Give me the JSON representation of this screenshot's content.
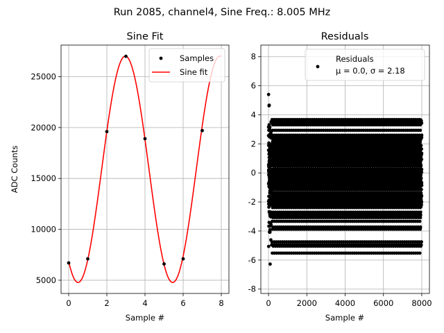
{
  "figure": {
    "title": "Run 2085, channel4, Sine Freq.: 8.005 MHz"
  },
  "chart_data": [
    {
      "type": "scatter",
      "title": "Sine Fit",
      "xlabel": "Sample #",
      "ylabel": "ADC Counts",
      "xlim": [
        -0.4,
        8.4
      ],
      "ylim": [
        3700,
        28100
      ],
      "xticks": [
        0,
        2,
        4,
        6,
        8
      ],
      "yticks": [
        5000,
        10000,
        15000,
        20000,
        25000
      ],
      "grid": true,
      "legend_position": "top-right",
      "series": [
        {
          "name": "Samples",
          "kind": "points",
          "color": "#000000",
          "x": [
            0,
            1,
            2,
            3,
            4,
            5,
            6,
            7
          ],
          "y": [
            6700,
            7100,
            19600,
            27000,
            18900,
            6600,
            7100,
            19700
          ]
        },
        {
          "name": "Sine fit",
          "kind": "line",
          "color": "#ff0000",
          "model": {
            "offset": 15900,
            "amplitude": 11120,
            "period": 4.96,
            "peak_x": 2.97
          },
          "x_range": [
            0,
            8
          ]
        }
      ]
    },
    {
      "type": "scatter",
      "title": "Residuals",
      "xlabel": "Sample #",
      "ylabel": "",
      "xlim": [
        -400,
        8400
      ],
      "ylim": [
        -8.3,
        8.8
      ],
      "xticks": [
        0,
        2000,
        4000,
        6000,
        8000
      ],
      "yticks": [
        -8,
        -6,
        -4,
        -2,
        0,
        2,
        4,
        6,
        8
      ],
      "grid": true,
      "legend_position": "top-right",
      "series": [
        {
          "name": "Residuals",
          "legend_extra": "μ = 0.0, σ = 2.18",
          "kind": "points",
          "color": "#000000",
          "n_points": 8000,
          "mean": 0.0,
          "std": 2.18,
          "x_range": [
            0,
            7999
          ]
        }
      ]
    }
  ]
}
